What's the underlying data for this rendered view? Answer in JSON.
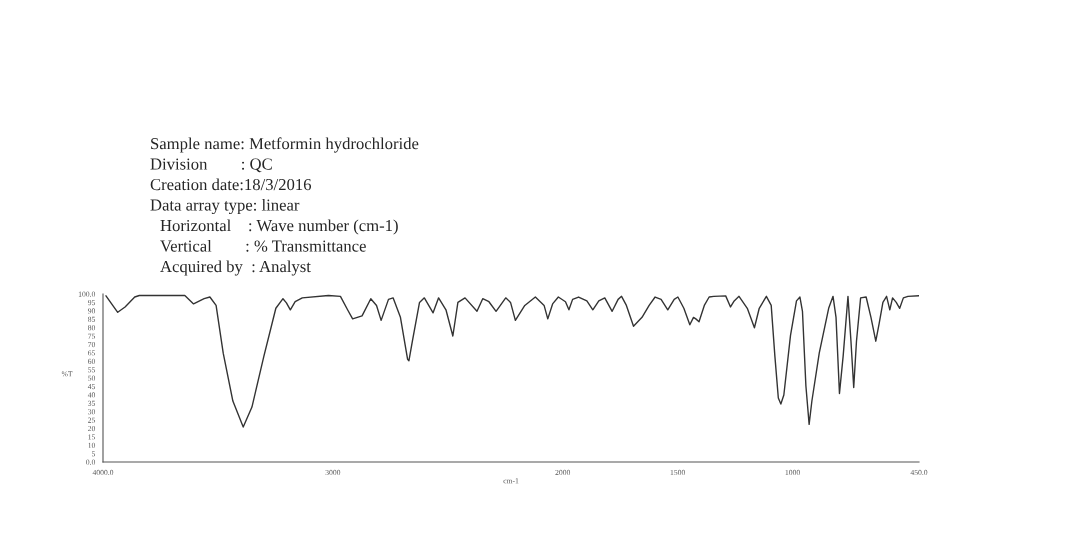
{
  "chart_data": {
    "type": "line",
    "xlabel": "cm-1",
    "ylabel": "%T",
    "annotations": [
      "Sample name: Metformin hydrochloride",
      "Division        : QC",
      "Creation date:18/3/2016",
      "Data array type: linear",
      "Horizontal    : Wave number (cm-1)",
      "Vertical        : % Transmittance",
      "Acquired by  : Analyst"
    ],
    "series": [
      {
        "color": "#333333",
        "x": [
          3987,
          3967,
          3936,
          3904,
          3862,
          3842,
          3644,
          3606,
          3560,
          3535,
          3508,
          3477,
          3435,
          3390,
          3352,
          3300,
          3248,
          3217,
          3202,
          3185,
          3164,
          3133,
          3019,
          2967,
          2936,
          2914,
          2873,
          2835,
          2810,
          2790,
          2758,
          2738,
          2706,
          2675,
          2669,
          2654,
          2623,
          2602,
          2564,
          2540,
          2508,
          2478,
          2456,
          2425,
          2373,
          2348,
          2321,
          2290,
          2248,
          2227,
          2206,
          2165,
          2119,
          2081,
          2065,
          2044,
          2019,
          1988,
          1973,
          1957,
          1931,
          1895,
          1869,
          1843,
          1817,
          1785,
          1759,
          1744,
          1723,
          1692,
          1655,
          1624,
          1598,
          1572,
          1543,
          1515,
          1499,
          1473,
          1447,
          1431,
          1421,
          1407,
          1384,
          1363,
          1343,
          1291,
          1270,
          1254,
          1233,
          1197,
          1166,
          1145,
          1114,
          1093,
          1077,
          1062,
          1051,
          1038,
          1009,
          983,
          968,
          957,
          942,
          928,
          916,
          884,
          843,
          824,
          811,
          796,
          780,
          759,
          746,
          734,
          722,
          704,
          680,
          659,
          638,
          623,
          607,
          591,
          577,
          565,
          549,
          534,
          518,
          498,
          450
        ],
        "values": [
          98.9,
          95,
          89.1,
          92.3,
          98.2,
          99.1,
          99.1,
          94.1,
          97.2,
          98.2,
          93.2,
          64.8,
          36.3,
          20.8,
          32.7,
          63,
          91.5,
          97.2,
          94.7,
          90.6,
          95.4,
          97.7,
          99.1,
          98.6,
          90.6,
          85.2,
          87,
          97.2,
          93.2,
          84.3,
          96.8,
          97.7,
          86.1,
          61.2,
          60.3,
          71.9,
          95,
          97.7,
          88.8,
          97.7,
          90.6,
          75,
          95,
          97.7,
          89.7,
          97.2,
          95.4,
          89.7,
          97.7,
          95,
          84.3,
          93.2,
          98.2,
          93.2,
          85.2,
          94.1,
          98.2,
          95.4,
          90.6,
          96.8,
          98.2,
          95.9,
          90.6,
          95.9,
          97.7,
          89.7,
          96.8,
          98.6,
          93.2,
          80.8,
          86.1,
          93.2,
          98.2,
          96.8,
          90.6,
          96.8,
          98.2,
          91.5,
          81.7,
          86.1,
          85.2,
          83.5,
          93.2,
          98.2,
          98.6,
          98.9,
          92.3,
          95.9,
          98.6,
          91.5,
          79.9,
          91.5,
          98.6,
          93.2,
          63,
          38.1,
          34.5,
          39.9,
          75.4,
          95.9,
          98.2,
          89.7,
          45.2,
          22.4,
          36.3,
          64.8,
          91.5,
          98.6,
          86.1,
          40.8,
          63,
          98.6,
          71.9,
          44.3,
          71.9,
          97.7,
          98.2,
          86.1,
          71.9,
          82.6,
          95,
          98.6,
          90.6,
          97.7,
          95,
          91.5,
          97.7,
          98.6,
          99
        ]
      }
    ],
    "xlim": [
      4000,
      450
    ],
    "xticks": [
      {
        "value": 4000,
        "label": "4000.0"
      },
      3000,
      2000,
      1500,
      1000,
      {
        "value": 450,
        "label": "450.0"
      }
    ],
    "ylim": [
      0,
      100
    ],
    "yticks": [
      {
        "value": 0,
        "label": "0.0"
      },
      5,
      10,
      15,
      20,
      25,
      30,
      35,
      40,
      45,
      50,
      55,
      60,
      65,
      70,
      75,
      80,
      85,
      90,
      95,
      {
        "value": 100,
        "label": "100.0"
      }
    ],
    "grid": false,
    "legend": false,
    "marker": "none",
    "line_style": "solid"
  }
}
